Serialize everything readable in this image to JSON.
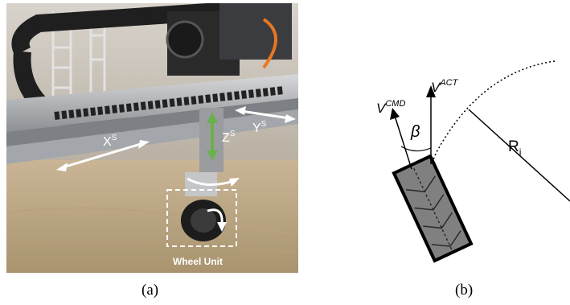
{
  "figure_a": {
    "axis_labels": {
      "x": "X",
      "x_sup": "S",
      "y": "Y",
      "y_sup": "S",
      "z": "Z",
      "z_sup": "S"
    },
    "wheel_unit_label": "Wheel Unit",
    "caption": "(a)"
  },
  "figure_b": {
    "v_cmd": "V",
    "v_cmd_sup": "CMD",
    "v_act": "V",
    "v_act_sup": "ACT",
    "beta": "β",
    "radius": "R",
    "radius_sub": "i",
    "caption": "(b)"
  },
  "colors": {
    "z_arrow": "#6ab04c",
    "sand": "#c9b596",
    "rail": "#b7b9bc",
    "wheel_fill": "#808080"
  }
}
